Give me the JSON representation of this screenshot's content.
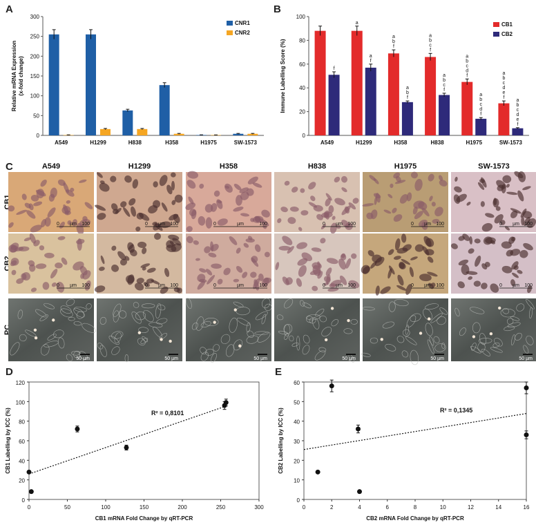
{
  "panels": {
    "A": {
      "letter": "A",
      "chart_data": {
        "type": "bar",
        "categories": [
          "A549",
          "H1299",
          "H838",
          "H358",
          "H1975",
          "SW-1573"
        ],
        "series": [
          {
            "name": "CNR1",
            "color": "#1f5fa6",
            "values": [
              255,
              255,
              63,
              127,
              1,
              4
            ],
            "errors": [
              12,
              12,
              3,
              6,
              0.5,
              1
            ]
          },
          {
            "name": "CNR2",
            "color": "#f5a623",
            "values": [
              1,
              16,
              16,
              4,
              1,
              4
            ],
            "errors": [
              0.5,
              1.5,
              1.5,
              1,
              0.3,
              1
            ]
          }
        ],
        "ylabel": "Relative mRNA Expression (x-fold change)",
        "ylabel_lines": [
          "Relative mRNA Expression",
          "(x-fold change)"
        ],
        "ylim": [
          0,
          300
        ],
        "yticks": [
          0,
          50,
          100,
          150,
          200,
          250,
          300
        ],
        "legend": "top-right"
      }
    },
    "B": {
      "letter": "B",
      "chart_data": {
        "type": "bar",
        "categories": [
          "A549",
          "H1299",
          "H358",
          "H838",
          "H1975",
          "SW-1573"
        ],
        "series": [
          {
            "name": "CB1",
            "color": "#e32b2b",
            "values": [
              88,
              88,
              69,
              66,
              45,
              27
            ],
            "errors": [
              4,
              4,
              3,
              3,
              2.5,
              2
            ],
            "sig": [
              "",
              "a",
              "a b f",
              "a b c f",
              "a b c d f",
              "a b c d e f"
            ]
          },
          {
            "name": "CB2",
            "color": "#2e2a7a",
            "values": [
              51,
              57,
              28,
              34,
              14,
              6
            ],
            "errors": [
              2.5,
              3,
              1,
              1.5,
              1,
              0.5
            ],
            "sig": [
              "f",
              "a f",
              "a b f",
              "a b c f",
              "a b c d f",
              "a b c d e f"
            ]
          }
        ],
        "ylabel": "Immune Labelling Score (%)",
        "ylim": [
          0,
          100
        ],
        "yticks": [
          0,
          20,
          40,
          60,
          80,
          100
        ],
        "legend": "top-right"
      }
    },
    "C": {
      "letter": "C",
      "columns": [
        "A549",
        "H1299",
        "H358",
        "H838",
        "H1975",
        "SW-1573"
      ],
      "rows": [
        "CB1",
        "CB2",
        "PC"
      ],
      "ihc_scale": {
        "zero": "0",
        "unit": "µm",
        "max": "100"
      },
      "pc_scale": "50 µm"
    },
    "D": {
      "letter": "D",
      "chart_data": {
        "type": "scatter",
        "x": [
          0,
          3,
          63,
          127,
          255,
          257
        ],
        "y": [
          28,
          8,
          72,
          53,
          96,
          99
        ],
        "errors": [
          1,
          1,
          3,
          2.5,
          4,
          3.5
        ],
        "trend": {
          "slope": 0.27,
          "intercept": 26
        },
        "r2": "R² = 0,8101",
        "xlabel": "CB1 mRNA Fold Change by qRT-PCR",
        "ylabel": "CB1 Labelling by ICC (%)",
        "xlim": [
          0,
          300
        ],
        "ylim": [
          0,
          120
        ],
        "xticks": [
          0,
          50,
          100,
          150,
          200,
          250,
          300
        ],
        "yticks": [
          0,
          20,
          40,
          60,
          80,
          100,
          120
        ]
      }
    },
    "E": {
      "letter": "E",
      "chart_data": {
        "type": "scatter",
        "x": [
          1,
          2,
          3.9,
          4,
          16,
          16
        ],
        "y": [
          14,
          58,
          36,
          4,
          57,
          33
        ],
        "errors": [
          0.5,
          3,
          2,
          0.5,
          3,
          2
        ],
        "trend": {
          "slope": 1.15,
          "intercept": 25.5
        },
        "r2": "R² = 0,1345",
        "xlabel": "CB2 mRNA Fold Change by qRT-PCR",
        "ylabel": "CB2 Labelling by ICC (%)",
        "xlim": [
          0,
          16
        ],
        "ylim": [
          0,
          60
        ],
        "xticks": [
          0,
          2,
          4,
          6,
          8,
          10,
          12,
          14,
          16
        ],
        "yticks": [
          0,
          10,
          20,
          30,
          40,
          50,
          60
        ]
      }
    }
  }
}
